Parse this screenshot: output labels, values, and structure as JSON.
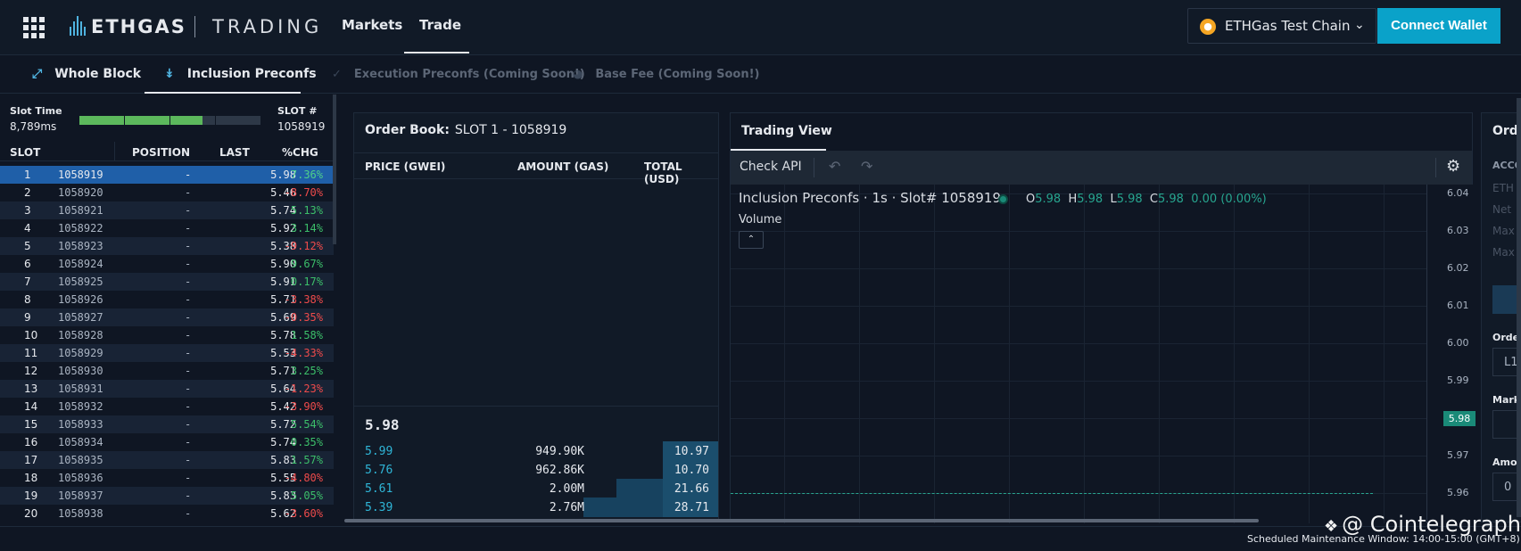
{
  "brand": {
    "name": "ETHGAS",
    "product": "TRADING"
  },
  "nav": [
    {
      "label": "Markets"
    },
    {
      "label": "Trade"
    }
  ],
  "chain": {
    "label": "ETHGas Test Chain"
  },
  "connect_label": "Connect Wallet",
  "subnav": [
    {
      "label": "Whole Block",
      "enabled": true
    },
    {
      "label": "Inclusion Preconfs",
      "enabled": true
    },
    {
      "label": "Execution Preconfs (Coming Soon!)",
      "enabled": false
    },
    {
      "label": "Base Fee (Coming Soon!)",
      "enabled": false
    }
  ],
  "slot_panel": {
    "slot_time_label": "Slot Time",
    "slot_time_value": "8,789ms",
    "progress_fraction": 0.68,
    "slot_no_label": "SLOT #",
    "slot_no_value": "1058919",
    "columns": [
      "SLOT",
      "POSITION",
      "LAST",
      "%CHG"
    ],
    "rows": [
      {
        "idx": "1",
        "slot": "1058919",
        "pos": "-",
        "last": "5.98",
        "chg": "7.36%",
        "dir": "pos"
      },
      {
        "idx": "2",
        "slot": "1058920",
        "pos": "-",
        "last": "5.46",
        "chg": "-8.70%",
        "dir": "neg"
      },
      {
        "idx": "3",
        "slot": "1058921",
        "pos": "-",
        "last": "5.74",
        "chg": "5.13%",
        "dir": "pos"
      },
      {
        "idx": "4",
        "slot": "1058922",
        "pos": "-",
        "last": "5.92",
        "chg": "3.14%",
        "dir": "pos"
      },
      {
        "idx": "5",
        "slot": "1058923",
        "pos": "-",
        "last": "5.38",
        "chg": "-9.12%",
        "dir": "neg"
      },
      {
        "idx": "6",
        "slot": "1058924",
        "pos": "-",
        "last": "5.90",
        "chg": "9.67%",
        "dir": "pos"
      },
      {
        "idx": "7",
        "slot": "1058925",
        "pos": "-",
        "last": "5.91",
        "chg": "0.17%",
        "dir": "pos"
      },
      {
        "idx": "8",
        "slot": "1058926",
        "pos": "-",
        "last": "5.71",
        "chg": "-3.38%",
        "dir": "neg"
      },
      {
        "idx": "9",
        "slot": "1058927",
        "pos": "-",
        "last": "5.69",
        "chg": "-0.35%",
        "dir": "neg"
      },
      {
        "idx": "10",
        "slot": "1058928",
        "pos": "-",
        "last": "5.78",
        "chg": "1.58%",
        "dir": "pos"
      },
      {
        "idx": "11",
        "slot": "1058929",
        "pos": "-",
        "last": "5.53",
        "chg": "-4.33%",
        "dir": "neg"
      },
      {
        "idx": "12",
        "slot": "1058930",
        "pos": "-",
        "last": "5.71",
        "chg": "3.25%",
        "dir": "pos"
      },
      {
        "idx": "13",
        "slot": "1058931",
        "pos": "-",
        "last": "5.64",
        "chg": "-1.23%",
        "dir": "neg"
      },
      {
        "idx": "14",
        "slot": "1058932",
        "pos": "-",
        "last": "5.42",
        "chg": "-3.90%",
        "dir": "neg"
      },
      {
        "idx": "15",
        "slot": "1058933",
        "pos": "-",
        "last": "5.72",
        "chg": "5.54%",
        "dir": "pos"
      },
      {
        "idx": "16",
        "slot": "1058934",
        "pos": "-",
        "last": "5.74",
        "chg": "0.35%",
        "dir": "pos"
      },
      {
        "idx": "17",
        "slot": "1058935",
        "pos": "-",
        "last": "5.83",
        "chg": "1.57%",
        "dir": "pos"
      },
      {
        "idx": "18",
        "slot": "1058936",
        "pos": "-",
        "last": "5.55",
        "chg": "-4.80%",
        "dir": "neg"
      },
      {
        "idx": "19",
        "slot": "1058937",
        "pos": "-",
        "last": "5.83",
        "chg": "5.05%",
        "dir": "pos"
      },
      {
        "idx": "20",
        "slot": "1058938",
        "pos": "-",
        "last": "5.62",
        "chg": "-3.60%",
        "dir": "neg"
      }
    ]
  },
  "order_book": {
    "title_label": "Order Book:",
    "title_slot": "SLOT 1 - 1058919",
    "columns": [
      "PRICE (GWEI)",
      "AMOUNT (GAS)",
      "TOTAL (USD)"
    ],
    "last_price": "5.98",
    "bids": [
      {
        "price": "5.99",
        "amount": "949.90K",
        "total": "10.97",
        "depth": 0.14
      },
      {
        "price": "5.76",
        "amount": "962.86K",
        "total": "10.70",
        "depth": 0.14
      },
      {
        "price": "5.61",
        "amount": "2.00M",
        "total": "21.66",
        "depth": 0.28
      },
      {
        "price": "5.39",
        "amount": "2.76M",
        "total": "28.71",
        "depth": 0.37
      }
    ]
  },
  "trading_view": {
    "tab_label": "Trading View",
    "check_api": "Check API",
    "chart_title": "Inclusion Preconfs · 1s · Slot# 1058919",
    "ohlc": {
      "o": "5.98",
      "h": "5.98",
      "l": "5.98",
      "c": "5.98",
      "chg": "0.00 (0.00%)"
    },
    "volume_label": "Volume",
    "y_ticks": [
      "6.04",
      "6.03",
      "6.02",
      "6.01",
      "6.00",
      "5.99",
      "5.98",
      "5.97",
      "5.96"
    ],
    "last_price_tag": "5.98"
  },
  "right_panel": {
    "title": "Orde",
    "acct": "ACCO",
    "eth": "ETH",
    "net": "Net",
    "max1": "Max",
    "max2": "Max",
    "order": "Orde",
    "l1": "L1",
    "mark": "Mark",
    "amo": "Amo",
    "zero": "0"
  },
  "footer": {
    "maintenance": "Scheduled Maintenance Window: 14:00-15:00 (GMT+8)"
  },
  "watermark": "@ Cointelegraph",
  "colors": {
    "accent": "#0aa2c9",
    "positive": "#3cbf6a",
    "negative": "#ef4b4b",
    "selected": "#1f5fa8"
  }
}
